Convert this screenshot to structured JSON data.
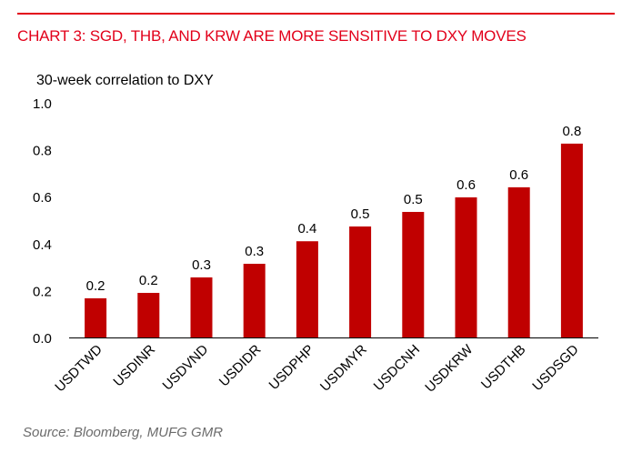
{
  "header": {
    "title": "CHART 3: SGD, THB, AND KRW ARE MORE SENSITIVE TO DXY MOVES"
  },
  "footer": {
    "source": "Source: Bloomberg, MUFG GMR"
  },
  "colors": {
    "accent": "#e2001a",
    "bar": "#c00000",
    "source_text": "#6b6b6b"
  },
  "chart_data": {
    "type": "bar",
    "title": "CHART 3: SGD, THB, AND KRW ARE MORE SENSITIVE TO DXY MOVES",
    "xlabel": "",
    "ylabel": "30-week correlation to DXY",
    "ylim": [
      0.0,
      1.0
    ],
    "yticks": [
      "0.0",
      "0.2",
      "0.4",
      "0.6",
      "0.8",
      "1.0"
    ],
    "grid": false,
    "legend": "none",
    "categories": [
      "USDTWD",
      "USDINR",
      "USDVND",
      "USDIDR",
      "USDPHP",
      "USDMYR",
      "USDCNH",
      "USDKRW",
      "USDTHB",
      "USDSGD"
    ],
    "values": [
      0.167,
      0.19,
      0.256,
      0.314,
      0.41,
      0.473,
      0.535,
      0.597,
      0.64,
      0.826
    ],
    "data_labels": [
      "0.2",
      "0.2",
      "0.3",
      "0.3",
      "0.4",
      "0.5",
      "0.5",
      "0.6",
      "0.6",
      "0.8"
    ]
  }
}
